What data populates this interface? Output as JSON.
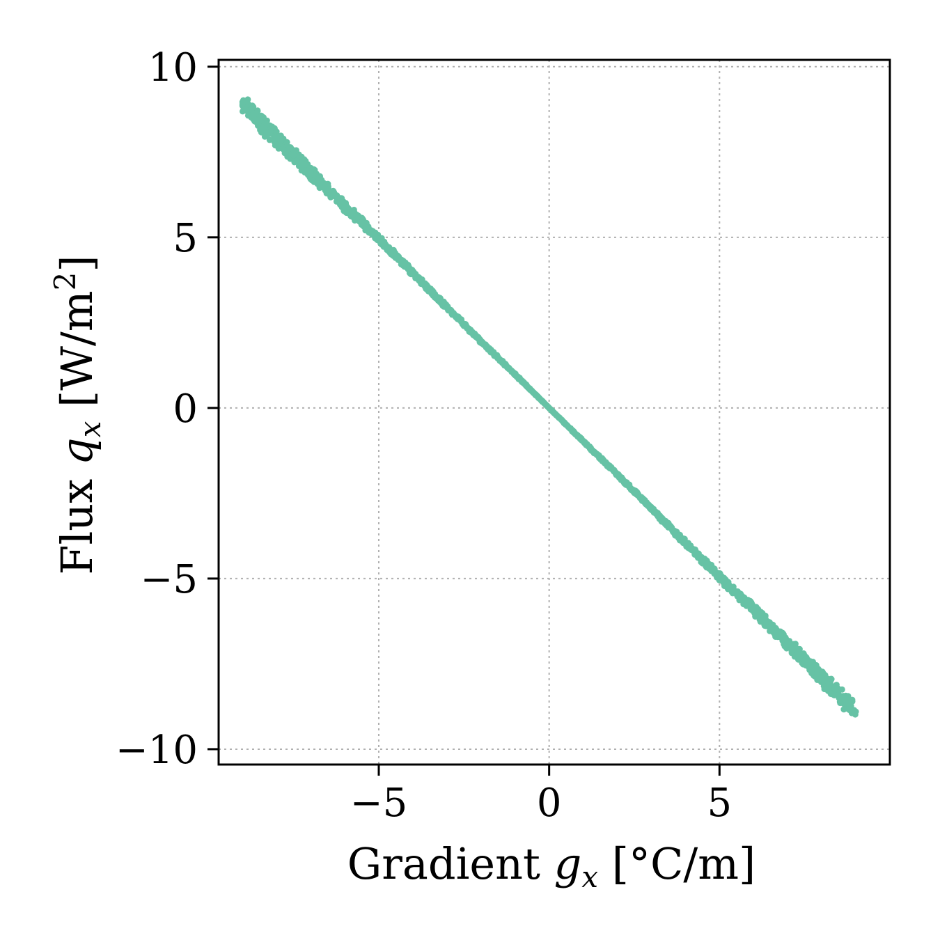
{
  "chart_data": {
    "type": "scatter",
    "title": "",
    "xlabel": {
      "prefix": "Gradient ",
      "var": "g",
      "sub": "x",
      "suffix": " [°C/m]"
    },
    "ylabel": {
      "prefix": "Flux ",
      "var": "q",
      "sub": "x",
      "units_pre": " [W/m",
      "units_sup": "2",
      "units_post": "]"
    },
    "xlim": [
      -9.7,
      10.0
    ],
    "ylim": [
      -10.45,
      10.2
    ],
    "xticks": [
      -5,
      0,
      5
    ],
    "yticks": [
      -10,
      -5,
      0,
      5,
      10
    ],
    "xtick_labels": [
      "−5",
      "0",
      "5"
    ],
    "ytick_labels": [
      "−10",
      "−5",
      "0",
      "5",
      "10"
    ],
    "grid": true,
    "legend": "none",
    "marker_color": "#66c2a5",
    "series": [
      {
        "x": [
          -9.0,
          -8.5,
          -8.0,
          -7.5,
          -7.0,
          -6.5,
          -6.0,
          -5.5,
          -5.0,
          -4.5,
          -4.0,
          -3.5,
          -3.0,
          -2.5,
          -2.0,
          -1.5,
          -1.0,
          -0.5,
          0.0,
          0.5,
          1.0,
          1.5,
          2.0,
          2.5,
          3.0,
          3.5,
          4.0,
          4.5,
          5.0,
          5.5,
          6.0,
          6.5,
          7.0,
          7.5,
          8.0,
          8.5,
          9.0
        ],
        "y": [
          8.9,
          8.4,
          7.9,
          7.4,
          6.9,
          6.4,
          5.9,
          5.45,
          4.95,
          4.45,
          3.95,
          3.45,
          2.95,
          2.45,
          1.95,
          1.47,
          0.98,
          0.49,
          0.0,
          -0.49,
          -0.98,
          -1.47,
          -1.95,
          -2.45,
          -2.95,
          -3.45,
          -3.95,
          -4.45,
          -4.95,
          -5.45,
          -5.9,
          -6.4,
          -6.9,
          -7.4,
          -7.9,
          -8.4,
          -8.9
        ],
        "spread": [
          0.3,
          0.3,
          0.28,
          0.25,
          0.22,
          0.2,
          0.18,
          0.15,
          0.13,
          0.12,
          0.1,
          0.09,
          0.08,
          0.07,
          0.06,
          0.05,
          0.04,
          0.02,
          0.01,
          0.02,
          0.04,
          0.05,
          0.06,
          0.07,
          0.08,
          0.09,
          0.1,
          0.12,
          0.13,
          0.15,
          0.18,
          0.2,
          0.22,
          0.25,
          0.28,
          0.3,
          0.32
        ]
      }
    ]
  }
}
